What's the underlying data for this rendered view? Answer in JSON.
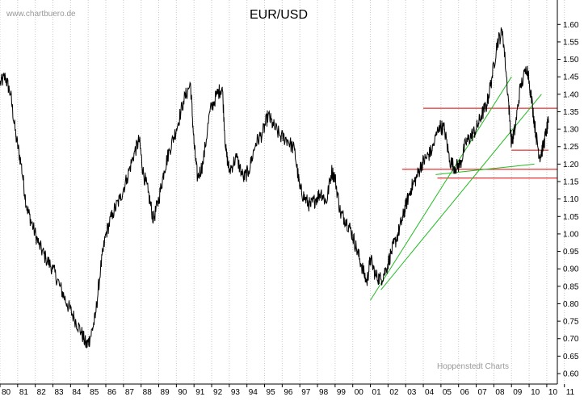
{
  "watermark": "www.chartbuero.de",
  "credit": "Hoppenstedt Charts",
  "chart_data": {
    "type": "line",
    "title": "EUR/USD",
    "xlabel": "",
    "ylabel": "",
    "ylim": [
      0.57,
      1.67
    ],
    "xlim": [
      1980.0,
      2011.6
    ],
    "grid": "vertical dotted lines at each year",
    "y_ticks": [
      "0.60",
      "0.65",
      "0.70",
      "0.75",
      "0.80",
      "0.85",
      "0.90",
      "0.95",
      "1.00",
      "1.05",
      "1.10",
      "1.15",
      "1.20",
      "1.25",
      "1.30",
      "1.35",
      "1.40",
      "1.45",
      "1.50",
      "1.55",
      "1.60"
    ],
    "x_ticks": [
      "80",
      "81",
      "82",
      "83",
      "84",
      "85",
      "86",
      "87",
      "88",
      "89",
      "90",
      "91",
      "92",
      "93",
      "94",
      "95",
      "96",
      "97",
      "98",
      "99",
      "00",
      "01",
      "02",
      "03",
      "04",
      "05",
      "06",
      "07",
      "08",
      "09",
      "10",
      "10",
      "11"
    ],
    "series": [
      {
        "x": [
          1980.0,
          1980.3,
          1980.6,
          1980.9,
          1981.2,
          1981.5,
          1981.8,
          1982.2,
          1982.6,
          1983.0,
          1983.4,
          1983.8,
          1984.2,
          1984.6,
          1984.9,
          1985.1,
          1985.4,
          1985.7,
          1986.0,
          1986.4,
          1986.8,
          1987.2,
          1987.6,
          1987.9,
          1988.1,
          1988.4,
          1988.7,
          1989.0,
          1989.3,
          1989.6,
          1990.0,
          1990.4,
          1990.8,
          1991.0,
          1991.2,
          1991.5,
          1991.9,
          1992.3,
          1992.6,
          1992.8,
          1993.0,
          1993.4,
          1993.8,
          1994.1,
          1994.5,
          1994.9,
          1995.2,
          1995.5,
          1995.9,
          1996.3,
          1996.7,
          1997.0,
          1997.3,
          1997.6,
          1997.9,
          1998.2,
          1998.5,
          1998.8,
          1999.0,
          1999.3,
          1999.6,
          1999.9,
          2000.2,
          2000.5,
          2000.8,
          2001.0,
          2001.3,
          2001.6,
          2001.9,
          2002.2,
          2002.5,
          2002.8,
          2003.0,
          2003.3,
          2003.6,
          2003.9,
          2004.2,
          2004.5,
          2004.9,
          2005.2,
          2005.5,
          2005.8,
          2006.1,
          2006.4,
          2006.7,
          2007.0,
          2007.3,
          2007.6,
          2007.9,
          2008.2,
          2008.5,
          2008.8,
          2009.0,
          2009.2,
          2009.5,
          2009.9,
          2010.2,
          2010.4,
          2010.6,
          2010.8,
          2011.0,
          2011.1
        ],
        "values": [
          1.43,
          1.45,
          1.4,
          1.28,
          1.2,
          1.08,
          1.03,
          0.97,
          0.93,
          0.9,
          0.85,
          0.8,
          0.76,
          0.72,
          0.68,
          0.7,
          0.76,
          0.9,
          1.0,
          1.06,
          1.1,
          1.16,
          1.23,
          1.27,
          1.18,
          1.12,
          1.04,
          1.1,
          1.18,
          1.24,
          1.3,
          1.38,
          1.43,
          1.26,
          1.16,
          1.2,
          1.35,
          1.4,
          1.42,
          1.24,
          1.18,
          1.22,
          1.16,
          1.18,
          1.26,
          1.29,
          1.34,
          1.31,
          1.28,
          1.27,
          1.24,
          1.13,
          1.1,
          1.08,
          1.1,
          1.12,
          1.09,
          1.18,
          1.16,
          1.06,
          1.04,
          1.01,
          0.96,
          0.91,
          0.86,
          0.93,
          0.88,
          0.87,
          0.9,
          0.95,
          0.99,
          1.04,
          1.08,
          1.13,
          1.16,
          1.2,
          1.22,
          1.24,
          1.31,
          1.3,
          1.21,
          1.19,
          1.2,
          1.26,
          1.28,
          1.3,
          1.34,
          1.37,
          1.45,
          1.55,
          1.58,
          1.4,
          1.26,
          1.3,
          1.42,
          1.48,
          1.36,
          1.28,
          1.22,
          1.25,
          1.3,
          1.32
        ]
      }
    ],
    "overlays": {
      "horizontal_lines": [
        {
          "y": 1.36,
          "x_start": 2004.0,
          "x_end": 2011.6,
          "color": "#e00000"
        },
        {
          "y": 1.24,
          "x_start": 2009.0,
          "x_end": 2011.1,
          "color": "#e00000"
        },
        {
          "y": 1.185,
          "x_start": 2002.8,
          "x_end": 2011.6,
          "color": "#e00000"
        },
        {
          "y": 1.16,
          "x_start": 2004.8,
          "x_end": 2011.6,
          "color": "#e00000"
        }
      ],
      "trend_lines": [
        {
          "x1": 2001.0,
          "y1": 0.81,
          "x2": 2009.0,
          "y2": 1.45,
          "color": "#22bb22"
        },
        {
          "x1": 2001.6,
          "y1": 0.84,
          "x2": 2010.7,
          "y2": 1.4,
          "color": "#22bb22"
        },
        {
          "x1": 2004.7,
          "y1": 1.17,
          "x2": 2010.3,
          "y2": 1.2,
          "color": "#22bb22"
        }
      ]
    }
  }
}
